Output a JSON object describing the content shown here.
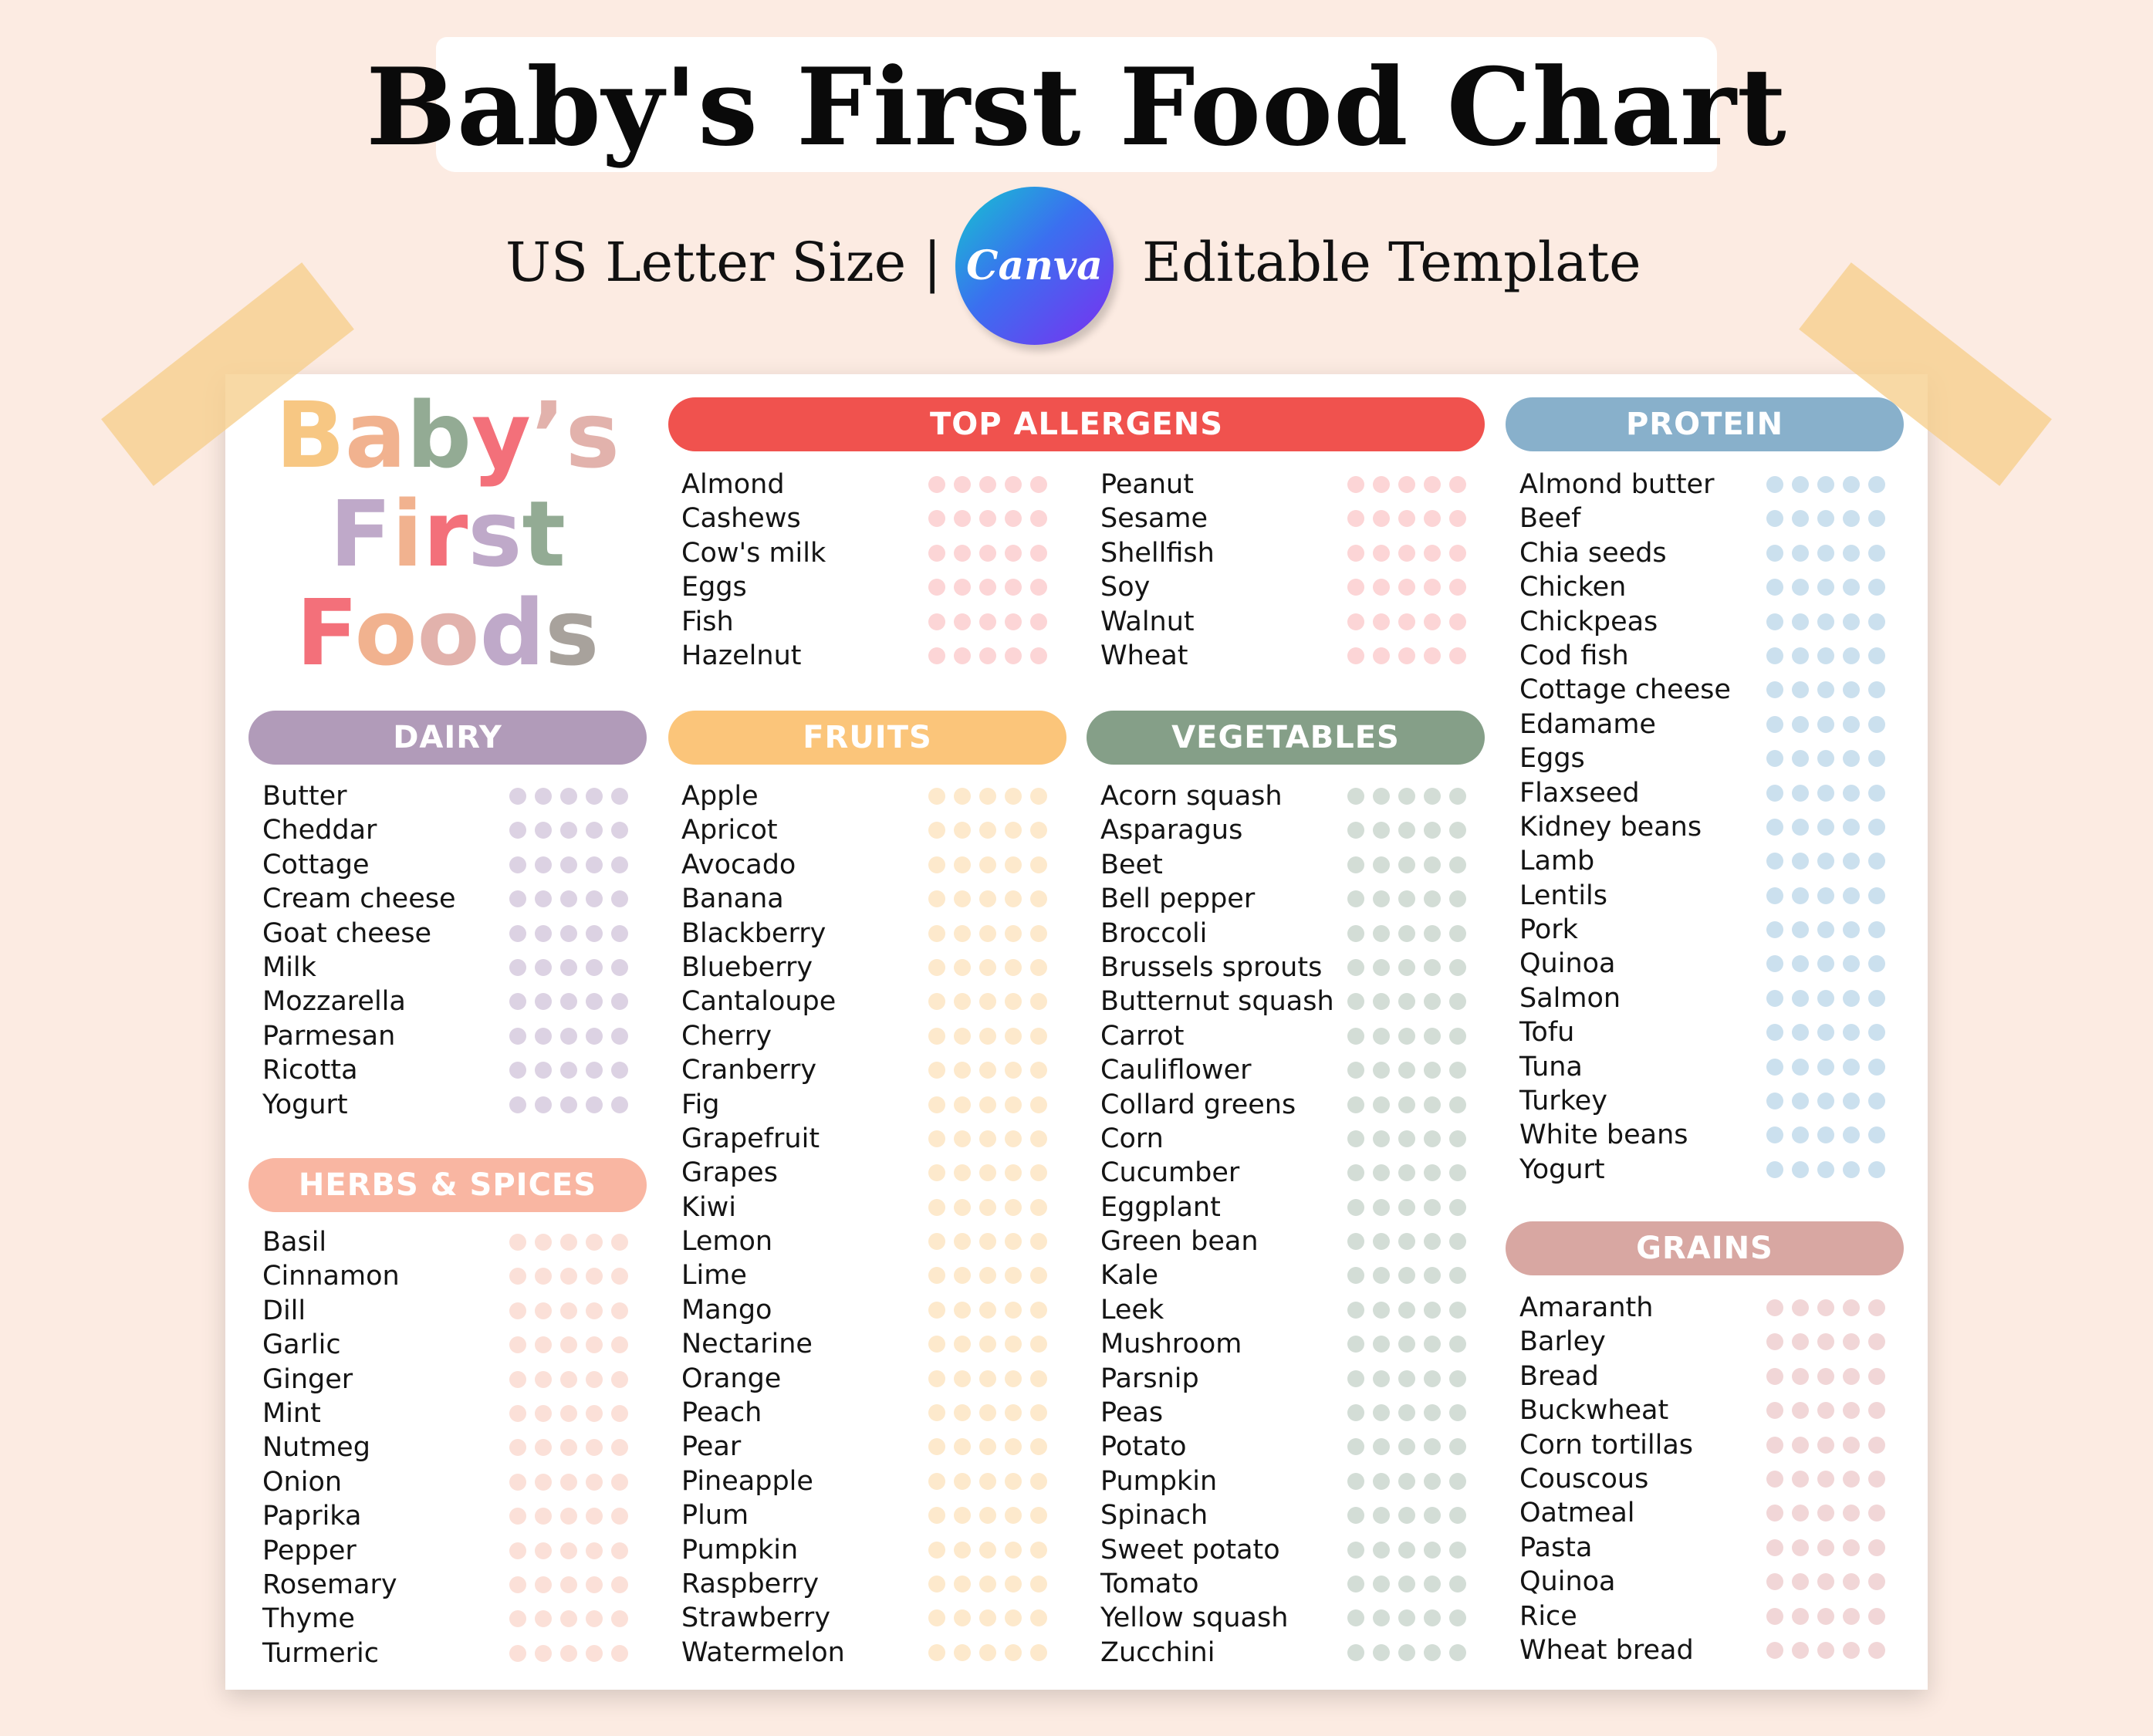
{
  "header": {
    "title": "Baby's First Food Chart",
    "subtitle_left": "US Letter Size |",
    "subtitle_right": "Editable Template",
    "canva_logo": "Canva"
  },
  "logo": {
    "line1": [
      "B",
      "a",
      "b",
      "y",
      "’",
      "s"
    ],
    "line2": [
      "F",
      "i",
      "r",
      "s",
      "t"
    ],
    "line3": [
      "F",
      "o",
      "o",
      "d",
      "s"
    ]
  },
  "sections": [
    {
      "id": "dairy",
      "title": "DAIRY",
      "color": "#b19bb9",
      "dot_color": "#dcd2e3",
      "items": [
        "Butter",
        "Cheddar",
        "Cottage",
        "Cream cheese",
        "Goat cheese",
        "Milk",
        "Mozzarella",
        "Parmesan",
        "Ricotta",
        "Yogurt"
      ]
    },
    {
      "id": "herbs",
      "title": "HERBS & SPICES",
      "color": "#f9b6a2",
      "dot_color": "#fbe0d8",
      "items": [
        "Basil",
        "Cinnamon",
        "Dill",
        "Garlic",
        "Ginger",
        "Mint",
        "Nutmeg",
        "Onion",
        "Paprika",
        "Pepper",
        "Rosemary",
        "Thyme",
        "Turmeric"
      ]
    },
    {
      "id": "allergens",
      "title": "TOP ALLERGENS",
      "color": "#f0524e",
      "dot_color": "#fcd5d6",
      "items_left": [
        "Almond",
        "Cashews",
        "Cow's milk",
        "Eggs",
        "Fish",
        "Hazelnut"
      ],
      "items_right": [
        "Peanut",
        "Sesame",
        "Shellfish",
        "Soy",
        "Walnut",
        "Wheat"
      ]
    },
    {
      "id": "fruits",
      "title": "FRUITS",
      "color": "#fbc57a",
      "dot_color": "#fde9cc",
      "items": [
        "Apple",
        "Apricot",
        "Avocado",
        "Banana",
        "Blackberry",
        "Blueberry",
        "Cantaloupe",
        "Cherry",
        "Cranberry",
        "Fig",
        "Grapefruit",
        "Grapes",
        "Kiwi",
        "Lemon",
        "Lime",
        "Mango",
        "Nectarine",
        "Orange",
        "Peach",
        "Pear",
        "Pineapple",
        "Plum",
        "Pumpkin",
        "Raspberry",
        "Strawberry",
        "Watermelon"
      ]
    },
    {
      "id": "vegetables",
      "title": "VEGETABLES",
      "color": "#859f88",
      "dot_color": "#d3ddd6",
      "items": [
        "Acorn squash",
        "Asparagus",
        "Beet",
        "Bell pepper",
        "Broccoli",
        "Brussels sprouts",
        "Butternut squash",
        "Carrot",
        "Cauliflower",
        "Collard greens",
        "Corn",
        "Cucumber",
        "Eggplant",
        "Green bean",
        "Kale",
        "Leek",
        "Mushroom",
        "Parsnip",
        "Peas",
        "Potato",
        "Pumpkin",
        "Spinach",
        "Sweet potato",
        "Tomato",
        "Yellow squash",
        "Zucchini"
      ]
    },
    {
      "id": "protein",
      "title": "PROTEIN",
      "color": "#88b0cb",
      "dot_color": "#cbe0ee",
      "items": [
        "Almond butter",
        "Beef",
        "Chia seeds",
        "Chicken",
        "Chickpeas",
        "Cod fish",
        "Cottage cheese",
        "Edamame",
        "Eggs",
        "Flaxseed",
        "Kidney beans",
        "Lamb",
        "Lentils",
        "Pork",
        "Quinoa",
        "Salmon",
        "Tofu",
        "Tuna",
        "Turkey",
        "White beans",
        "Yogurt"
      ]
    },
    {
      "id": "grains",
      "title": "GRAINS",
      "color": "#d8a7a2",
      "dot_color": "#f1d6d7",
      "items": [
        "Amaranth",
        "Barley",
        "Bread",
        "Buckwheat",
        "Corn tortillas",
        "Couscous",
        "Oatmeal",
        "Pasta",
        "Quinoa",
        "Rice",
        "Wheat bread"
      ]
    }
  ]
}
